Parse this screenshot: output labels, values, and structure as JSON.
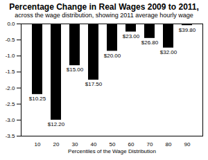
{
  "chart_data": {
    "type": "bar",
    "title": "Percentage Change in Real Wages 2009 to 2011,",
    "subtitle": "across the wage distribution, showing 2011 average hourly wage",
    "x_label": "Percentiles of the Wage Distribution",
    "categories": [
      10,
      20,
      30,
      40,
      50,
      60,
      70,
      80,
      90
    ],
    "values": [
      -2.2,
      -3.0,
      -1.3,
      -1.75,
      -0.85,
      -0.25,
      -0.45,
      -0.75,
      -0.05
    ],
    "annotations": [
      "$10.25",
      "$12.20",
      "$15.00",
      "$17.50",
      "$20.00",
      "$23.00",
      "$26.80",
      "$32.00",
      "$39.80"
    ],
    "color": "#000000",
    "ylim": [
      -3.5,
      0
    ],
    "yticks": [
      {
        "value": -3.5,
        "label": "-3.5"
      },
      {
        "value": -3.0,
        "label": "-3.0"
      },
      {
        "value": -2.5,
        "label": "-2.5"
      },
      {
        "value": -2.0,
        "label": "-2.0"
      },
      {
        "value": -1.5,
        "label": "-1.5"
      },
      {
        "value": -1.0,
        "label": "-1.0"
      },
      {
        "value": -0.5,
        "label": "-0.5"
      },
      {
        "value": 0,
        "label": "0.0"
      }
    ],
    "grid": false
  }
}
